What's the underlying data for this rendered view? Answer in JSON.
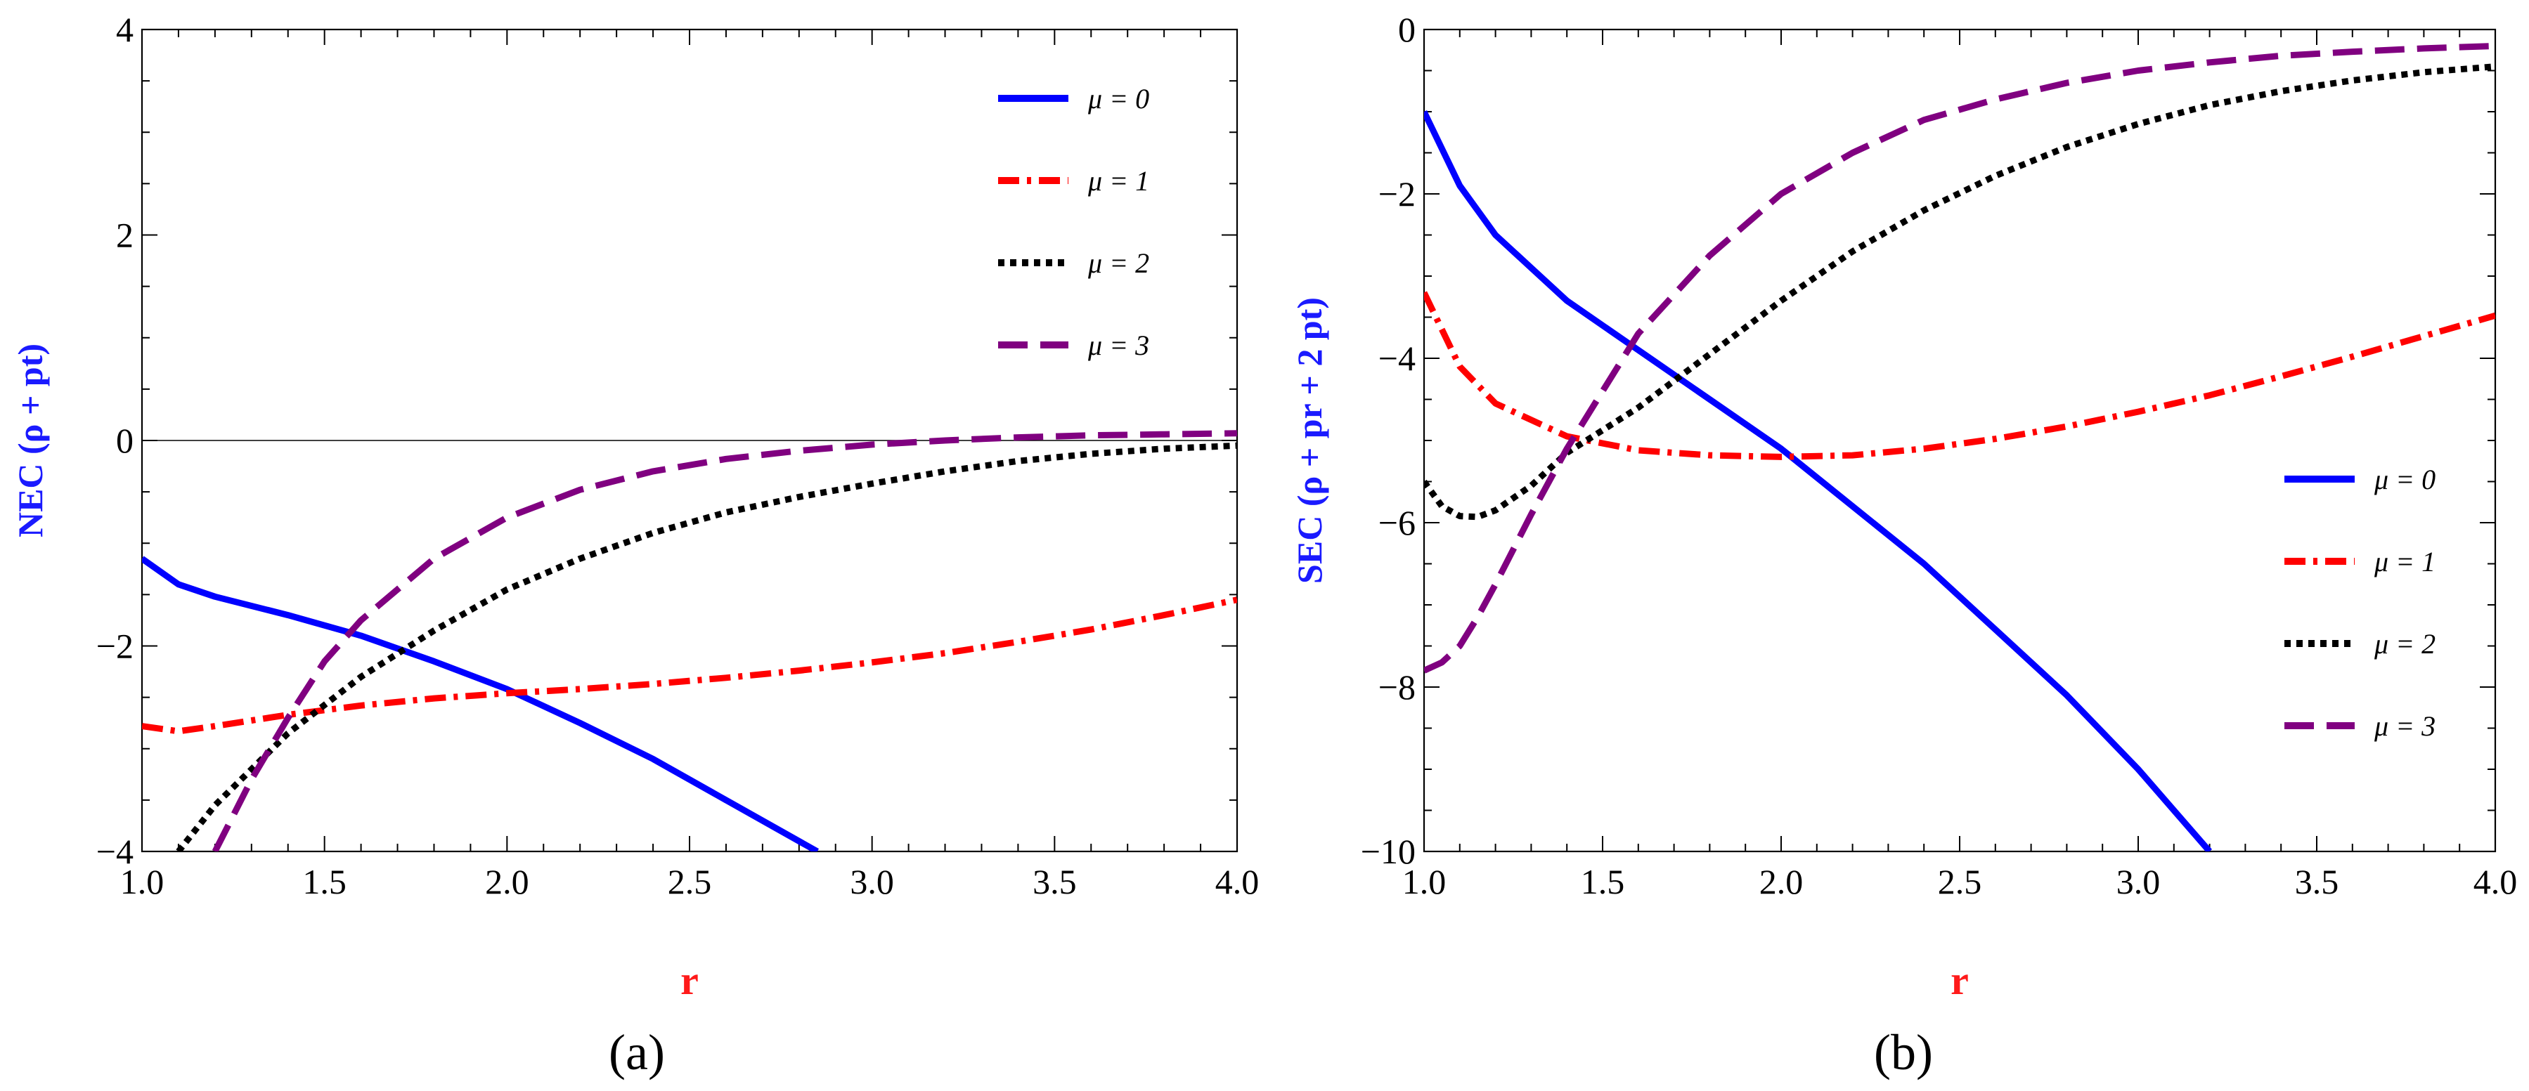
{
  "figure_captions": [
    "(a)",
    "(b)"
  ],
  "chart_data": [
    {
      "type": "line",
      "panel": "(a)",
      "xlabel": "r",
      "ylabel": "NEC (ρ + pt)",
      "xlim": [
        1.0,
        4.0
      ],
      "ylim": [
        -4,
        4
      ],
      "xticks": [
        1.0,
        1.5,
        2.0,
        2.5,
        3.0,
        3.5,
        4.0
      ],
      "xtick_labels": [
        "1.0",
        "1.5",
        "2.0",
        "2.5",
        "3.0",
        "3.5",
        "4.0"
      ],
      "yticks": [
        -4,
        -2,
        0,
        2,
        4
      ],
      "ytick_labels": [
        "−4",
        "−2",
        "0",
        "2",
        "4"
      ],
      "zero_line": true,
      "legend_position": "top-right",
      "series": [
        {
          "name": "μ = 0",
          "color": "#0000ff",
          "style": "solid",
          "x": [
            1.0,
            1.1,
            1.2,
            1.4,
            1.6,
            1.8,
            2.0,
            2.2,
            2.4,
            2.6,
            2.85
          ],
          "y": [
            -1.15,
            -1.4,
            -1.52,
            -1.7,
            -1.9,
            -2.15,
            -2.42,
            -2.75,
            -3.1,
            -3.5,
            -4.0
          ]
        },
        {
          "name": "μ = 1",
          "color": "#ff0000",
          "style": "dashdot",
          "x": [
            1.0,
            1.1,
            1.2,
            1.4,
            1.6,
            1.8,
            2.0,
            2.2,
            2.4,
            2.6,
            2.8,
            3.0,
            3.2,
            3.4,
            3.6,
            3.8,
            4.0
          ],
          "y": [
            -2.78,
            -2.83,
            -2.78,
            -2.67,
            -2.58,
            -2.51,
            -2.46,
            -2.42,
            -2.37,
            -2.31,
            -2.24,
            -2.16,
            -2.07,
            -1.96,
            -1.84,
            -1.7,
            -1.55
          ]
        },
        {
          "name": "μ = 2",
          "color": "#000000",
          "style": "dotted",
          "x": [
            1.1,
            1.2,
            1.4,
            1.6,
            1.8,
            2.0,
            2.2,
            2.4,
            2.6,
            2.8,
            3.0,
            3.2,
            3.4,
            3.6,
            3.8,
            4.0
          ],
          "y": [
            -4.0,
            -3.55,
            -2.85,
            -2.3,
            -1.85,
            -1.45,
            -1.15,
            -0.9,
            -0.7,
            -0.55,
            -0.42,
            -0.3,
            -0.2,
            -0.13,
            -0.08,
            -0.05
          ]
        },
        {
          "name": "μ = 3",
          "color": "#800080",
          "style": "dashed",
          "x": [
            1.2,
            1.3,
            1.4,
            1.5,
            1.6,
            1.8,
            2.0,
            2.2,
            2.4,
            2.6,
            2.8,
            3.0,
            3.2,
            3.4,
            3.6,
            3.8,
            4.0
          ],
          "y": [
            -4.0,
            -3.3,
            -2.7,
            -2.15,
            -1.75,
            -1.15,
            -0.75,
            -0.48,
            -0.3,
            -0.18,
            -0.1,
            -0.04,
            0.0,
            0.03,
            0.05,
            0.06,
            0.07
          ]
        }
      ]
    },
    {
      "type": "line",
      "panel": "(b)",
      "xlabel": "r",
      "ylabel": "SEC (ρ + pr + 2 pt)",
      "xlim": [
        1.0,
        4.0
      ],
      "ylim": [
        -10,
        0
      ],
      "xticks": [
        1.0,
        1.5,
        2.0,
        2.5,
        3.0,
        3.5,
        4.0
      ],
      "xtick_labels": [
        "1.0",
        "1.5",
        "2.0",
        "2.5",
        "3.0",
        "3.5",
        "4.0"
      ],
      "yticks": [
        -10,
        -8,
        -6,
        -4,
        -2,
        0
      ],
      "ytick_labels": [
        "−10",
        "−8",
        "−6",
        "−4",
        "−2",
        "0"
      ],
      "zero_line": false,
      "legend_position": "bottom-right",
      "series": [
        {
          "name": "μ = 0",
          "color": "#0000ff",
          "style": "solid",
          "x": [
            1.0,
            1.1,
            1.2,
            1.4,
            1.6,
            1.8,
            2.0,
            2.2,
            2.4,
            2.6,
            2.8,
            3.0,
            3.2
          ],
          "y": [
            -1.0,
            -1.9,
            -2.5,
            -3.3,
            -3.9,
            -4.5,
            -5.1,
            -5.8,
            -6.5,
            -7.3,
            -8.1,
            -9.0,
            -10.0
          ]
        },
        {
          "name": "μ = 1",
          "color": "#ff0000",
          "style": "dashdot",
          "x": [
            1.0,
            1.1,
            1.2,
            1.4,
            1.6,
            1.8,
            2.0,
            2.2,
            2.4,
            2.6,
            2.8,
            3.0,
            3.2,
            3.4,
            3.6,
            3.8,
            4.0
          ],
          "y": [
            -3.2,
            -4.1,
            -4.55,
            -4.95,
            -5.12,
            -5.18,
            -5.2,
            -5.18,
            -5.1,
            -4.98,
            -4.83,
            -4.65,
            -4.45,
            -4.22,
            -3.98,
            -3.73,
            -3.48
          ]
        },
        {
          "name": "μ = 2",
          "color": "#000000",
          "style": "dotted",
          "x": [
            1.0,
            1.05,
            1.1,
            1.15,
            1.2,
            1.3,
            1.4,
            1.6,
            1.8,
            2.0,
            2.2,
            2.4,
            2.6,
            2.8,
            3.0,
            3.2,
            3.4,
            3.6,
            3.8,
            4.0
          ],
          "y": [
            -5.5,
            -5.8,
            -5.92,
            -5.93,
            -5.85,
            -5.55,
            -5.15,
            -4.6,
            -3.95,
            -3.3,
            -2.7,
            -2.2,
            -1.78,
            -1.43,
            -1.15,
            -0.92,
            -0.75,
            -0.62,
            -0.52,
            -0.45
          ]
        },
        {
          "name": "μ = 3",
          "color": "#800080",
          "style": "dashed",
          "x": [
            1.0,
            1.05,
            1.1,
            1.15,
            1.2,
            1.3,
            1.4,
            1.5,
            1.6,
            1.8,
            2.0,
            2.2,
            2.4,
            2.6,
            2.8,
            3.0,
            3.2,
            3.4,
            3.6,
            3.8,
            4.0
          ],
          "y": [
            -7.8,
            -7.7,
            -7.5,
            -7.15,
            -6.75,
            -5.9,
            -5.1,
            -4.4,
            -3.7,
            -2.75,
            -2.0,
            -1.5,
            -1.1,
            -0.85,
            -0.65,
            -0.5,
            -0.4,
            -0.32,
            -0.27,
            -0.23,
            -0.2
          ]
        }
      ]
    }
  ]
}
